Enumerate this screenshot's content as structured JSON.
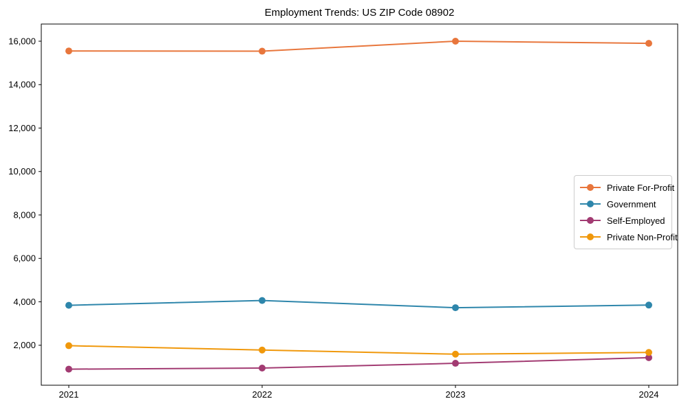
{
  "chart_data": {
    "type": "line",
    "title": "Employment Trends: US ZIP Code 08902",
    "xlabel": "",
    "ylabel": "",
    "categories": [
      "2021",
      "2022",
      "2023",
      "2024"
    ],
    "series": [
      {
        "name": "Private For-Profit",
        "color": "#E8763C",
        "values": [
          15550,
          15540,
          16000,
          15900
        ]
      },
      {
        "name": "Government",
        "color": "#2E86AB",
        "values": [
          3840,
          4060,
          3730,
          3850
        ]
      },
      {
        "name": "Self-Employed",
        "color": "#A23B72",
        "values": [
          900,
          950,
          1170,
          1430
        ]
      },
      {
        "name": "Private Non-Profit",
        "color": "#F0980B",
        "values": [
          1980,
          1780,
          1590,
          1670
        ]
      }
    ],
    "y_ticks": [
      2000,
      4000,
      6000,
      8000,
      10000,
      12000,
      14000,
      16000
    ],
    "y_tick_labels": [
      "2,000",
      "4,000",
      "6,000",
      "8,000",
      "10,000",
      "12,000",
      "14,000",
      "16,000"
    ],
    "ylim": [
      160,
      16790
    ],
    "grid": false,
    "legend_position": "middle-right",
    "axis_color": "#000000",
    "tick_label_color": "#000000"
  }
}
